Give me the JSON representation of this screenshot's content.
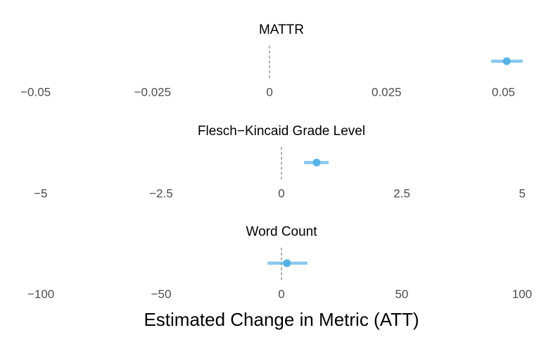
{
  "chart_data": [
    {
      "type": "pointrange",
      "title": "MATTR",
      "color": "#56b1e6",
      "values": [
        0.0507
      ],
      "lower": [
        0.0474
      ],
      "upper": [
        0.0541
      ],
      "refline": 0,
      "xlim": [
        -0.0516,
        0.0567
      ],
      "xticks": [
        {
          "value": -0.05,
          "label": "−0.05"
        },
        {
          "value": -0.025,
          "label": "−0.025"
        },
        0,
        0.025,
        0.05
      ]
    },
    {
      "type": "pointrange",
      "title": "Flesch−Kincaid Grade Level",
      "color": "#56b1e6",
      "values": [
        0.73
      ],
      "lower": [
        0.47
      ],
      "upper": [
        0.98
      ],
      "refline": 0,
      "xlim": [
        -5.26,
        5.26
      ],
      "xticks": [
        {
          "value": -5,
          "label": "−5"
        },
        {
          "value": -2.5,
          "label": "−2.5"
        },
        0,
        2.5,
        5
      ]
    },
    {
      "type": "pointrange",
      "title": "Word Count",
      "color": "#56b1e6",
      "values": [
        2.3
      ],
      "lower": [
        -5.8
      ],
      "upper": [
        10.8
      ],
      "refline": 0,
      "xlim": [
        -105.3,
        105.3
      ],
      "xticks": [
        {
          "value": -100,
          "label": "−100"
        },
        {
          "value": -50,
          "label": "−50"
        },
        0,
        50,
        100
      ],
      "xlabel": "Estimated Change in Metric (ATT)"
    }
  ]
}
